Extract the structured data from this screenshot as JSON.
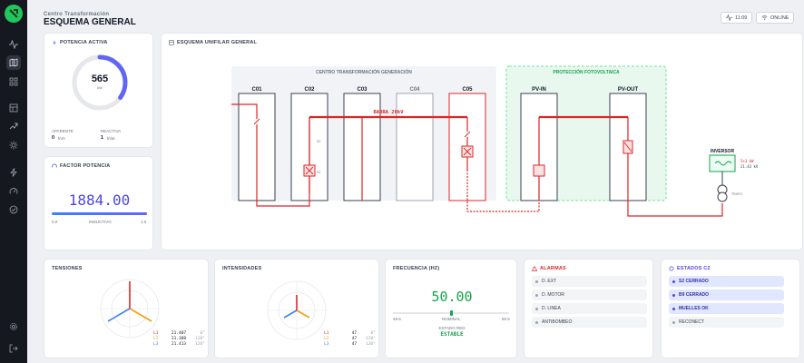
{
  "header": {
    "subtitle": "Centro Transformación",
    "title": "ESQUEMA GENERAL",
    "time": "11:09",
    "status": "ONLINE"
  },
  "nav": [
    "logo-icon",
    "activity-icon",
    "map-icon",
    "grid-icon",
    "table-icon",
    "trend-icon",
    "sun-icon",
    "bolt-icon",
    "gauge-icon",
    "check-icon",
    "settings-icon",
    "logout-icon"
  ],
  "potencia": {
    "title": "POTENCIA ACTIVA",
    "value": "565",
    "unit": "kW",
    "fraction": 0.35,
    "aparente_label": "APARENTE",
    "aparente_value": "0",
    "aparente_unit": "kVA",
    "reactiva_label": "REACTIVA",
    "reactiva_value": "1",
    "reactiva_unit": "kVar"
  },
  "factor": {
    "title": "FACTOR POTENCIA",
    "value": "1884.00",
    "min": "0.0",
    "mode": "INDUCTIVO",
    "max": "1.0"
  },
  "unifilar": {
    "title": "ESQUEMA UNIFILAR GENERAL",
    "ct_title": "CENTRO TRANSFORMACIÓN GENERACIÓN",
    "pv_title": "PROTECCIÓN FOTOVOLTAICA",
    "cells": [
      "C01",
      "C02",
      "C03",
      "C04",
      "C05"
    ],
    "pv_cells": [
      "PV-IN",
      "PV-OUT"
    ],
    "bus": "BARRA 20kV",
    "s1": "S1",
    "s2": "S2",
    "inversor": "INVERSOR",
    "inv_line1": "5s3 kW",
    "inv_line2": "21.43 kV",
    "trafo": "TRAFO"
  },
  "tensiones": {
    "title": "TENSIONES",
    "rows": [
      {
        "ph": "L1",
        "v": "21.407",
        "a": "0°"
      },
      {
        "ph": "L2",
        "v": "21.388",
        "a": "-120°"
      },
      {
        "ph": "L3",
        "v": "21.413",
        "a": "120°"
      }
    ]
  },
  "intensidades": {
    "title": "INTENSIDADES",
    "rows": [
      {
        "ph": "L1",
        "v": "47",
        "a": "0°"
      },
      {
        "ph": "L2",
        "v": "47",
        "a": "-120°"
      },
      {
        "ph": "L3",
        "v": "47",
        "a": "120°"
      }
    ]
  },
  "frecuencia": {
    "title": "FRECUENCIA (HZ)",
    "value": "50.00",
    "min": "49.5",
    "nominal": "NOMINAL",
    "max": "50.5",
    "estado_label": "ESTADO RED",
    "estado_value": "ESTABLE"
  },
  "alarmas": {
    "title": "ALARMAS",
    "items": [
      "D. EXT",
      "D. MOTOR",
      "D. LINEA",
      "ANTIBOMBEO"
    ]
  },
  "estados": {
    "title": "ESTADOS C2",
    "items": [
      "S2 CERRADO",
      "B9 CERRADO",
      "MUELLES OK",
      "RECONECT"
    ]
  },
  "colors": {
    "red": "#dc2626",
    "green": "#16a34a",
    "accent": "#6366f1",
    "blue": "#3b82f6"
  }
}
